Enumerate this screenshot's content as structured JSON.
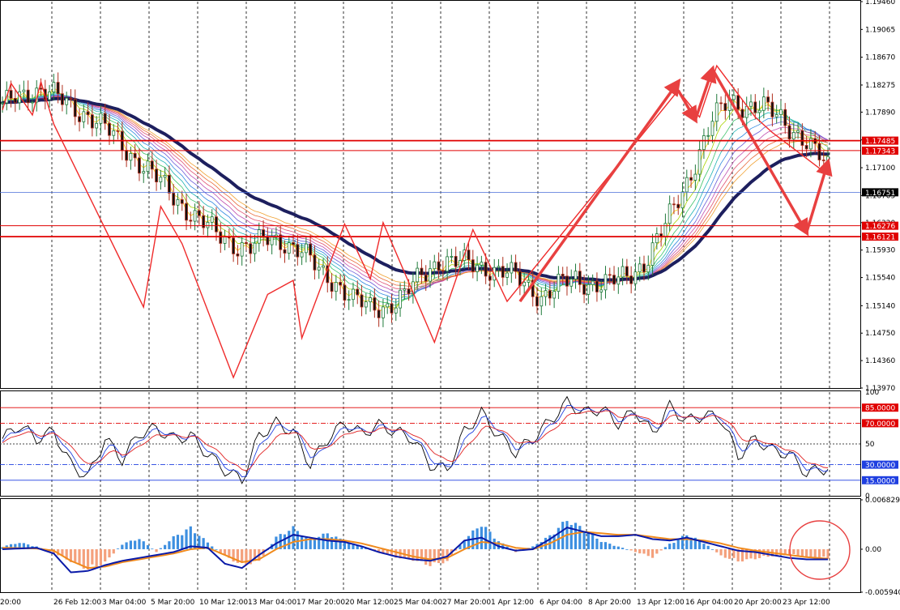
{
  "chart_data": {
    "type": "candlestick",
    "colors": {
      "background": "#ffffff",
      "border": "#000000",
      "grid": "#000000",
      "candle_up": "#1f7a3a",
      "candle_down": "#b0301e",
      "ma_slow": "#1d1f5e",
      "zigzag": "#ef2b2b",
      "level": "#e00000",
      "price_line": "#4a6fd8",
      "rsi_fast": "#000000",
      "rsi_mid": "#1f3fe0",
      "rsi_slow": "#e02020",
      "hist_pos": "#3d8fe0",
      "hist_neg": "#f4a07c",
      "macd": "#0a1aa8",
      "signal": "#f08a1c",
      "annotation": "#e84040"
    },
    "x_labels": [
      "20:00",
      "26 Feb 12:00",
      "3 Mar 04:00",
      "5 Mar 20:00",
      "10 Mar 12:00",
      "13 Mar 04:00",
      "17 Mar 20:00",
      "20 Mar 12:00",
      "25 Mar 04:00",
      "27 Mar 20:00",
      "1 Apr 12:00",
      "6 Apr 04:00",
      "8 Apr 20:00",
      "13 Apr 12:00",
      "16 Apr 04:00",
      "20 Apr 20:00",
      "23 Apr 12:00"
    ],
    "main": {
      "ylim": [
        1.1397,
        1.1946
      ],
      "y_ticks": [
        "1.19460",
        "1.19065",
        "1.18670",
        "1.18275",
        "1.17890",
        "1.17495",
        "1.17100",
        "1.16705",
        "1.16320",
        "1.15930",
        "1.15540",
        "1.15140",
        "1.14750",
        "1.14360",
        "1.13970"
      ],
      "levels": [
        {
          "value": 1.17485,
          "label": "1.17485"
        },
        {
          "value": 1.17343,
          "label": "1.17343"
        },
        {
          "value": 1.16276,
          "label": "1.16276"
        },
        {
          "value": 1.16121,
          "label": "1.16121"
        }
      ],
      "current_price": {
        "value": 1.16751,
        "label": "1.16751"
      },
      "trend_path": [
        [
          0,
          1.1795
        ],
        [
          3,
          1.181
        ],
        [
          6,
          1.1818
        ],
        [
          9,
          1.182
        ],
        [
          12,
          1.1812
        ],
        [
          16,
          1.1798
        ],
        [
          20,
          1.1785
        ],
        [
          25,
          1.176
        ],
        [
          30,
          1.173
        ],
        [
          35,
          1.17
        ],
        [
          40,
          1.167
        ],
        [
          45,
          1.164
        ],
        [
          50,
          1.1616
        ],
        [
          55,
          1.16
        ],
        [
          58,
          1.1596
        ],
        [
          62,
          1.1608
        ],
        [
          66,
          1.1606
        ],
        [
          70,
          1.159
        ],
        [
          74,
          1.1563
        ],
        [
          78,
          1.1548
        ],
        [
          82,
          1.1522
        ],
        [
          86,
          1.151
        ],
        [
          90,
          1.1515
        ],
        [
          94,
          1.1528
        ],
        [
          98,
          1.1556
        ],
        [
          102,
          1.1579
        ],
        [
          106,
          1.1575
        ],
        [
          110,
          1.1572
        ],
        [
          114,
          1.1568
        ],
        [
          118,
          1.156
        ],
        [
          122,
          1.1545
        ],
        [
          126,
          1.1528
        ],
        [
          130,
          1.1542
        ],
        [
          134,
          1.155
        ],
        [
          138,
          1.1546
        ],
        [
          142,
          1.1545
        ],
        [
          146,
          1.1556
        ],
        [
          150,
          1.1575
        ],
        [
          154,
          1.1615
        ],
        [
          158,
          1.1665
        ],
        [
          162,
          1.1718
        ],
        [
          166,
          1.1775
        ],
        [
          170,
          1.1808
        ],
        [
          174,
          1.1798
        ],
        [
          178,
          1.1793
        ],
        [
          182,
          1.1782
        ],
        [
          186,
          1.1758
        ],
        [
          190,
          1.173
        ],
        [
          193,
          1.1712
        ]
      ],
      "zigzag_points": [
        [
          0,
          1.1792
        ],
        [
          2,
          1.183
        ],
        [
          7,
          1.1785
        ],
        [
          9,
          1.1832
        ],
        [
          12,
          1.1772
        ],
        [
          33,
          1.1512
        ],
        [
          37,
          1.1655
        ],
        [
          42,
          1.1602
        ],
        [
          54,
          1.1412
        ],
        [
          62,
          1.153
        ],
        [
          68,
          1.155
        ],
        [
          70,
          1.1468
        ],
        [
          80,
          1.163
        ],
        [
          86,
          1.1552
        ],
        [
          89,
          1.1632
        ],
        [
          101,
          1.1462
        ],
        [
          110,
          1.1622
        ],
        [
          118,
          1.152
        ],
        [
          158,
          1.182
        ],
        [
          163,
          1.1782
        ],
        [
          167,
          1.1855
        ],
        [
          176,
          1.1782
        ],
        [
          180,
          1.176
        ],
        [
          193,
          1.17
        ]
      ],
      "arrows": [
        {
          "from": [
            121,
            1.152
          ],
          "to": [
            158,
            1.1832
          ]
        },
        {
          "from": [
            158,
            1.182
          ],
          "to": [
            162,
            1.1778
          ]
        },
        {
          "from": [
            162,
            1.1778
          ],
          "to": [
            166,
            1.185
          ]
        },
        {
          "from": [
            166,
            1.185
          ],
          "to": [
            188,
            1.1618
          ]
        },
        {
          "from": [
            188,
            1.1618
          ],
          "to": [
            193,
            1.1718
          ]
        }
      ]
    },
    "rsi": {
      "ylim": [
        0,
        100
      ],
      "y_ticks": [
        "100",
        "50",
        "0"
      ],
      "levels": [
        {
          "value": 85,
          "label": "85.0000",
          "color": "#e00000",
          "style": "solid"
        },
        {
          "value": 70,
          "label": "70.0000",
          "color": "#e00000",
          "style": "dashdot"
        },
        {
          "value": 50,
          "label": "",
          "color": "#444444",
          "style": "dotted"
        },
        {
          "value": 30,
          "label": "30.0000",
          "color": "#1f3fe0",
          "style": "dashdot"
        },
        {
          "value": 15,
          "label": "15.0000",
          "color": "#1f3fe0",
          "style": "solid"
        }
      ],
      "path": [
        [
          0,
          55
        ],
        [
          4,
          68
        ],
        [
          8,
          55
        ],
        [
          12,
          62
        ],
        [
          16,
          30
        ],
        [
          20,
          18
        ],
        [
          24,
          55
        ],
        [
          28,
          35
        ],
        [
          32,
          60
        ],
        [
          36,
          65
        ],
        [
          40,
          55
        ],
        [
          44,
          58
        ],
        [
          48,
          40
        ],
        [
          52,
          25
        ],
        [
          56,
          15
        ],
        [
          60,
          58
        ],
        [
          64,
          70
        ],
        [
          68,
          62
        ],
        [
          72,
          30
        ],
        [
          76,
          55
        ],
        [
          80,
          70
        ],
        [
          84,
          60
        ],
        [
          88,
          68
        ],
        [
          92,
          62
        ],
        [
          96,
          55
        ],
        [
          100,
          30
        ],
        [
          104,
          25
        ],
        [
          108,
          62
        ],
        [
          112,
          80
        ],
        [
          116,
          58
        ],
        [
          120,
          42
        ],
        [
          124,
          55
        ],
        [
          128,
          72
        ],
        [
          132,
          90
        ],
        [
          136,
          80
        ],
        [
          140,
          84
        ],
        [
          144,
          70
        ],
        [
          148,
          82
        ],
        [
          152,
          60
        ],
        [
          156,
          86
        ],
        [
          160,
          72
        ],
        [
          164,
          78
        ],
        [
          168,
          75
        ],
        [
          172,
          38
        ],
        [
          176,
          55
        ],
        [
          180,
          44
        ],
        [
          184,
          40
        ],
        [
          188,
          22
        ],
        [
          192,
          26
        ],
        [
          193,
          28
        ]
      ]
    },
    "macd": {
      "ylim": [
        -0.0059409,
        0.0068298
      ],
      "y_ticks": [
        "0.0068298",
        "0.00",
        "-0.0059409"
      ],
      "hist": [
        [
          0,
          0.0004
        ],
        [
          4,
          0.001
        ],
        [
          8,
          0.0004
        ],
        [
          12,
          -0.0006
        ],
        [
          16,
          -0.0018
        ],
        [
          20,
          -0.003
        ],
        [
          24,
          -0.002
        ],
        [
          28,
          0.0008
        ],
        [
          32,
          0.0016
        ],
        [
          36,
          -0.0004
        ],
        [
          40,
          0.0018
        ],
        [
          44,
          0.0032
        ],
        [
          48,
          0.001
        ],
        [
          52,
          -0.001
        ],
        [
          56,
          -0.0024
        ],
        [
          60,
          -0.0018
        ],
        [
          64,
          0.0018
        ],
        [
          68,
          0.0032
        ],
        [
          72,
          0.0014
        ],
        [
          76,
          0.0024
        ],
        [
          80,
          0.0012
        ],
        [
          84,
          0.0004
        ],
        [
          88,
          -0.0004
        ],
        [
          92,
          -0.0012
        ],
        [
          96,
          -0.0016
        ],
        [
          100,
          -0.0024
        ],
        [
          104,
          -0.0018
        ],
        [
          108,
          0.0014
        ],
        [
          112,
          0.0038
        ],
        [
          116,
          0.0012
        ],
        [
          120,
          -0.0004
        ],
        [
          124,
          0.0004
        ],
        [
          128,
          0.002
        ],
        [
          132,
          0.0044
        ],
        [
          136,
          0.003
        ],
        [
          140,
          0.0012
        ],
        [
          144,
          0.0004
        ],
        [
          148,
          -0.0004
        ],
        [
          152,
          -0.0012
        ],
        [
          156,
          0.0008
        ],
        [
          160,
          0.0022
        ],
        [
          164,
          0.001
        ],
        [
          168,
          -0.001
        ],
        [
          172,
          -0.0018
        ],
        [
          176,
          -0.0014
        ],
        [
          180,
          -0.001
        ],
        [
          184,
          -0.0008
        ],
        [
          188,
          -0.0012
        ],
        [
          193,
          -0.0014
        ]
      ],
      "macd_path": [
        [
          0,
          0.0
        ],
        [
          8,
          0.0002
        ],
        [
          12,
          -0.0006
        ],
        [
          16,
          -0.0032
        ],
        [
          20,
          -0.003
        ],
        [
          24,
          -0.0022
        ],
        [
          28,
          -0.0016
        ],
        [
          32,
          -0.0012
        ],
        [
          36,
          -0.0008
        ],
        [
          40,
          -0.0004
        ],
        [
          44,
          0.0004
        ],
        [
          48,
          0.0002
        ],
        [
          52,
          -0.002
        ],
        [
          56,
          -0.0026
        ],
        [
          60,
          -0.0008
        ],
        [
          64,
          0.0008
        ],
        [
          68,
          0.002
        ],
        [
          72,
          0.0016
        ],
        [
          76,
          0.0012
        ],
        [
          80,
          0.001
        ],
        [
          84,
          0.0004
        ],
        [
          88,
          -0.0004
        ],
        [
          92,
          -0.001
        ],
        [
          96,
          -0.0014
        ],
        [
          100,
          -0.0016
        ],
        [
          104,
          -0.001
        ],
        [
          108,
          0.0012
        ],
        [
          112,
          0.0016
        ],
        [
          116,
          0.0004
        ],
        [
          120,
          -0.0002
        ],
        [
          124,
          0.0
        ],
        [
          128,
          0.0014
        ],
        [
          132,
          0.003
        ],
        [
          136,
          0.0024
        ],
        [
          140,
          0.0018
        ],
        [
          144,
          0.0018
        ],
        [
          148,
          0.002
        ],
        [
          152,
          0.0014
        ],
        [
          156,
          0.0012
        ],
        [
          160,
          0.0016
        ],
        [
          164,
          0.001
        ],
        [
          168,
          0.0004
        ],
        [
          172,
          -0.0002
        ],
        [
          176,
          -0.0004
        ],
        [
          180,
          -0.0008
        ],
        [
          184,
          -0.0012
        ],
        [
          188,
          -0.0014
        ],
        [
          193,
          -0.0014
        ]
      ],
      "signal_path": [
        [
          0,
          0.0002
        ],
        [
          8,
          0.0001
        ],
        [
          12,
          -0.0002
        ],
        [
          16,
          -0.0016
        ],
        [
          20,
          -0.0026
        ],
        [
          24,
          -0.0024
        ],
        [
          28,
          -0.0018
        ],
        [
          32,
          -0.0014
        ],
        [
          36,
          -0.001
        ],
        [
          40,
          -0.0006
        ],
        [
          44,
          0.0
        ],
        [
          48,
          0.0002
        ],
        [
          52,
          -0.0008
        ],
        [
          56,
          -0.0018
        ],
        [
          60,
          -0.0014
        ],
        [
          64,
          0.0
        ],
        [
          68,
          0.001
        ],
        [
          72,
          0.0014
        ],
        [
          76,
          0.0014
        ],
        [
          80,
          0.0012
        ],
        [
          84,
          0.0008
        ],
        [
          88,
          0.0002
        ],
        [
          92,
          -0.0004
        ],
        [
          96,
          -0.001
        ],
        [
          100,
          -0.0014
        ],
        [
          104,
          -0.0012
        ],
        [
          108,
          0.0
        ],
        [
          112,
          0.001
        ],
        [
          116,
          0.0008
        ],
        [
          120,
          0.0002
        ],
        [
          124,
          0.0
        ],
        [
          128,
          0.0008
        ],
        [
          132,
          0.002
        ],
        [
          136,
          0.0024
        ],
        [
          140,
          0.0022
        ],
        [
          144,
          0.002
        ],
        [
          148,
          0.002
        ],
        [
          152,
          0.0017
        ],
        [
          156,
          0.0014
        ],
        [
          160,
          0.0014
        ],
        [
          164,
          0.0012
        ],
        [
          168,
          0.0008
        ],
        [
          172,
          0.0002
        ],
        [
          176,
          -0.0002
        ],
        [
          180,
          -0.0005
        ],
        [
          184,
          -0.0008
        ],
        [
          188,
          -0.0011
        ],
        [
          193,
          -0.0013
        ]
      ]
    }
  }
}
